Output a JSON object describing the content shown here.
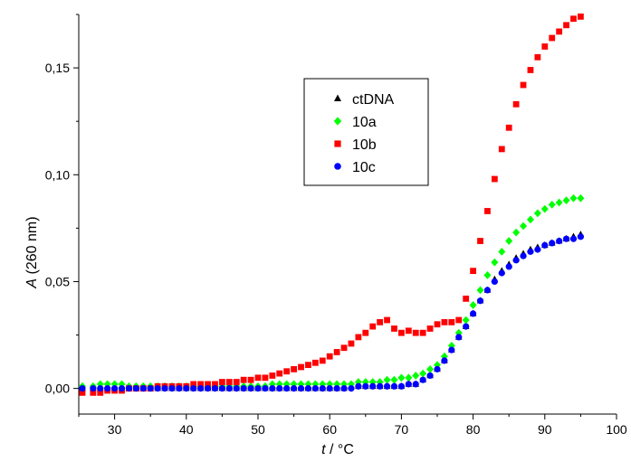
{
  "chart_data": {
    "type": "scatter",
    "xlabel_var": "t",
    "xlabel_unit": " / °C",
    "ylabel_var": "A",
    "ylabel_unit": " (260 nm)",
    "xlim": [
      25,
      100
    ],
    "ylim": [
      -0.012,
      0.175
    ],
    "xticks": [
      30,
      40,
      50,
      60,
      70,
      80,
      90,
      100
    ],
    "yticks": [
      0.0,
      0.05,
      0.1,
      0.15
    ],
    "ytick_labels": [
      "0,00",
      "0,05",
      "0,10",
      "0,15"
    ],
    "grid": false,
    "legend_position": "top-center",
    "series": [
      {
        "name": "ctDNA",
        "marker": "triangle",
        "color": "#000000",
        "points": [
          [
            25.5,
            0.0
          ],
          [
            27,
            0.0
          ],
          [
            28,
            0.0
          ],
          [
            29,
            0.0
          ],
          [
            30,
            0.0
          ],
          [
            31,
            0.0
          ],
          [
            32,
            0.0
          ],
          [
            33,
            0.0
          ],
          [
            34,
            0.0
          ],
          [
            35,
            0.0
          ],
          [
            36,
            0.0
          ],
          [
            37,
            0.0
          ],
          [
            38,
            0.0
          ],
          [
            39,
            0.0
          ],
          [
            40,
            0.0
          ],
          [
            41,
            0.0
          ],
          [
            42,
            0.0
          ],
          [
            43,
            0.0
          ],
          [
            44,
            0.0
          ],
          [
            45,
            0.0
          ],
          [
            46,
            0.0
          ],
          [
            47,
            0.0
          ],
          [
            48,
            0.0
          ],
          [
            49,
            0.0
          ],
          [
            50,
            0.0
          ],
          [
            51,
            0.0
          ],
          [
            52,
            0.0
          ],
          [
            53,
            0.0
          ],
          [
            54,
            0.0
          ],
          [
            55,
            0.0
          ],
          [
            56,
            0.0
          ],
          [
            57,
            0.0
          ],
          [
            58,
            0.0
          ],
          [
            59,
            0.0
          ],
          [
            60,
            0.0
          ],
          [
            61,
            0.0
          ],
          [
            62,
            0.0
          ],
          [
            63,
            0.001
          ],
          [
            64,
            0.001
          ],
          [
            65,
            0.001
          ],
          [
            66,
            0.001
          ],
          [
            67,
            0.001
          ],
          [
            68,
            0.001
          ],
          [
            69,
            0.001
          ],
          [
            70,
            0.001
          ],
          [
            71,
            0.002
          ],
          [
            72,
            0.002
          ],
          [
            73,
            0.004
          ],
          [
            74,
            0.006
          ],
          [
            75,
            0.009
          ],
          [
            76,
            0.013
          ],
          [
            77,
            0.018
          ],
          [
            78,
            0.024
          ],
          [
            79,
            0.029
          ],
          [
            80,
            0.035
          ],
          [
            81,
            0.041
          ],
          [
            82,
            0.046
          ],
          [
            83,
            0.051
          ],
          [
            84,
            0.055
          ],
          [
            85,
            0.058
          ],
          [
            86,
            0.061
          ],
          [
            87,
            0.063
          ],
          [
            88,
            0.065
          ],
          [
            89,
            0.066
          ],
          [
            90,
            0.067
          ],
          [
            91,
            0.068
          ],
          [
            92,
            0.069
          ],
          [
            93,
            0.07
          ],
          [
            94,
            0.071
          ],
          [
            95,
            0.072
          ]
        ]
      },
      {
        "name": "10a",
        "marker": "diamond",
        "color": "#00ff00",
        "points": [
          [
            25.5,
            0.001
          ],
          [
            27,
            0.001
          ],
          [
            28,
            0.002
          ],
          [
            29,
            0.002
          ],
          [
            30,
            0.002
          ],
          [
            31,
            0.002
          ],
          [
            32,
            0.001
          ],
          [
            33,
            0.001
          ],
          [
            34,
            0.001
          ],
          [
            35,
            0.001
          ],
          [
            36,
            0.001
          ],
          [
            37,
            0.001
          ],
          [
            38,
            0.001
          ],
          [
            39,
            0.001
          ],
          [
            40,
            0.001
          ],
          [
            41,
            0.001
          ],
          [
            42,
            0.001
          ],
          [
            43,
            0.001
          ],
          [
            44,
            0.001
          ],
          [
            45,
            0.001
          ],
          [
            46,
            0.001
          ],
          [
            47,
            0.001
          ],
          [
            48,
            0.001
          ],
          [
            49,
            0.001
          ],
          [
            50,
            0.001
          ],
          [
            51,
            0.001
          ],
          [
            52,
            0.002
          ],
          [
            53,
            0.002
          ],
          [
            54,
            0.002
          ],
          [
            55,
            0.002
          ],
          [
            56,
            0.002
          ],
          [
            57,
            0.002
          ],
          [
            58,
            0.002
          ],
          [
            59,
            0.002
          ],
          [
            60,
            0.002
          ],
          [
            61,
            0.002
          ],
          [
            62,
            0.002
          ],
          [
            63,
            0.002
          ],
          [
            64,
            0.003
          ],
          [
            65,
            0.003
          ],
          [
            66,
            0.003
          ],
          [
            67,
            0.003
          ],
          [
            68,
            0.004
          ],
          [
            69,
            0.004
          ],
          [
            70,
            0.005
          ],
          [
            71,
            0.005
          ],
          [
            72,
            0.006
          ],
          [
            73,
            0.007
          ],
          [
            74,
            0.009
          ],
          [
            75,
            0.011
          ],
          [
            76,
            0.015
          ],
          [
            77,
            0.02
          ],
          [
            78,
            0.026
          ],
          [
            79,
            0.032
          ],
          [
            80,
            0.039
          ],
          [
            81,
            0.046
          ],
          [
            82,
            0.053
          ],
          [
            83,
            0.059
          ],
          [
            84,
            0.064
          ],
          [
            85,
            0.069
          ],
          [
            86,
            0.073
          ],
          [
            87,
            0.076
          ],
          [
            88,
            0.079
          ],
          [
            89,
            0.082
          ],
          [
            90,
            0.084
          ],
          [
            91,
            0.086
          ],
          [
            92,
            0.087
          ],
          [
            93,
            0.088
          ],
          [
            94,
            0.089
          ],
          [
            95,
            0.089
          ]
        ]
      },
      {
        "name": "10b",
        "marker": "square",
        "color": "#ff0000",
        "points": [
          [
            25.5,
            -0.002
          ],
          [
            27,
            -0.002
          ],
          [
            28,
            -0.002
          ],
          [
            29,
            -0.001
          ],
          [
            30,
            -0.001
          ],
          [
            31,
            -0.001
          ],
          [
            32,
            0.0
          ],
          [
            33,
            0.0
          ],
          [
            34,
            0.0
          ],
          [
            35,
            0.0
          ],
          [
            36,
            0.001
          ],
          [
            37,
            0.001
          ],
          [
            38,
            0.001
          ],
          [
            39,
            0.001
          ],
          [
            40,
            0.001
          ],
          [
            41,
            0.002
          ],
          [
            42,
            0.002
          ],
          [
            43,
            0.002
          ],
          [
            44,
            0.002
          ],
          [
            45,
            0.003
          ],
          [
            46,
            0.003
          ],
          [
            47,
            0.003
          ],
          [
            48,
            0.004
          ],
          [
            49,
            0.004
          ],
          [
            50,
            0.005
          ],
          [
            51,
            0.005
          ],
          [
            52,
            0.006
          ],
          [
            53,
            0.007
          ],
          [
            54,
            0.008
          ],
          [
            55,
            0.009
          ],
          [
            56,
            0.01
          ],
          [
            57,
            0.011
          ],
          [
            58,
            0.012
          ],
          [
            59,
            0.013
          ],
          [
            60,
            0.015
          ],
          [
            61,
            0.017
          ],
          [
            62,
            0.019
          ],
          [
            63,
            0.021
          ],
          [
            64,
            0.024
          ],
          [
            65,
            0.026
          ],
          [
            66,
            0.029
          ],
          [
            67,
            0.031
          ],
          [
            68,
            0.032
          ],
          [
            69,
            0.028
          ],
          [
            70,
            0.026
          ],
          [
            71,
            0.027
          ],
          [
            72,
            0.026
          ],
          [
            73,
            0.026
          ],
          [
            74,
            0.028
          ],
          [
            75,
            0.03
          ],
          [
            76,
            0.031
          ],
          [
            77,
            0.031
          ],
          [
            78,
            0.032
          ],
          [
            79,
            0.042
          ],
          [
            80,
            0.055
          ],
          [
            81,
            0.069
          ],
          [
            82,
            0.083
          ],
          [
            83,
            0.098
          ],
          [
            84,
            0.112
          ],
          [
            85,
            0.122
          ],
          [
            86,
            0.133
          ],
          [
            87,
            0.142
          ],
          [
            88,
            0.149
          ],
          [
            89,
            0.155
          ],
          [
            90,
            0.16
          ],
          [
            91,
            0.164
          ],
          [
            92,
            0.167
          ],
          [
            93,
            0.17
          ],
          [
            94,
            0.173
          ],
          [
            95,
            0.174
          ]
        ]
      },
      {
        "name": "10c",
        "marker": "circle",
        "color": "#0000ff",
        "points": [
          [
            25.5,
            0.0
          ],
          [
            27,
            0.0
          ],
          [
            28,
            0.0
          ],
          [
            29,
            0.0
          ],
          [
            30,
            0.0
          ],
          [
            31,
            0.0
          ],
          [
            32,
            0.0
          ],
          [
            33,
            0.0
          ],
          [
            34,
            0.0
          ],
          [
            35,
            0.0
          ],
          [
            36,
            0.0
          ],
          [
            37,
            0.0
          ],
          [
            38,
            0.0
          ],
          [
            39,
            0.0
          ],
          [
            40,
            0.0
          ],
          [
            41,
            0.0
          ],
          [
            42,
            0.0
          ],
          [
            43,
            0.0
          ],
          [
            44,
            0.0
          ],
          [
            45,
            0.0
          ],
          [
            46,
            0.0
          ],
          [
            47,
            0.0
          ],
          [
            48,
            0.0
          ],
          [
            49,
            0.0
          ],
          [
            50,
            0.0
          ],
          [
            51,
            0.0
          ],
          [
            52,
            0.0
          ],
          [
            53,
            0.0
          ],
          [
            54,
            0.0
          ],
          [
            55,
            0.0
          ],
          [
            56,
            0.0
          ],
          [
            57,
            0.0
          ],
          [
            58,
            0.0
          ],
          [
            59,
            0.0
          ],
          [
            60,
            0.0
          ],
          [
            61,
            0.0
          ],
          [
            62,
            0.0
          ],
          [
            63,
            0.0
          ],
          [
            64,
            0.001
          ],
          [
            65,
            0.001
          ],
          [
            66,
            0.001
          ],
          [
            67,
            0.001
          ],
          [
            68,
            0.001
          ],
          [
            69,
            0.001
          ],
          [
            70,
            0.001
          ],
          [
            71,
            0.002
          ],
          [
            72,
            0.002
          ],
          [
            73,
            0.004
          ],
          [
            74,
            0.006
          ],
          [
            75,
            0.009
          ],
          [
            76,
            0.013
          ],
          [
            77,
            0.018
          ],
          [
            78,
            0.024
          ],
          [
            79,
            0.029
          ],
          [
            80,
            0.035
          ],
          [
            81,
            0.041
          ],
          [
            82,
            0.046
          ],
          [
            83,
            0.05
          ],
          [
            84,
            0.054
          ],
          [
            85,
            0.057
          ],
          [
            86,
            0.06
          ],
          [
            87,
            0.062
          ],
          [
            88,
            0.064
          ],
          [
            89,
            0.065
          ],
          [
            90,
            0.067
          ],
          [
            91,
            0.068
          ],
          [
            92,
            0.069
          ],
          [
            93,
            0.07
          ],
          [
            94,
            0.07
          ],
          [
            95,
            0.071
          ]
        ]
      }
    ]
  }
}
